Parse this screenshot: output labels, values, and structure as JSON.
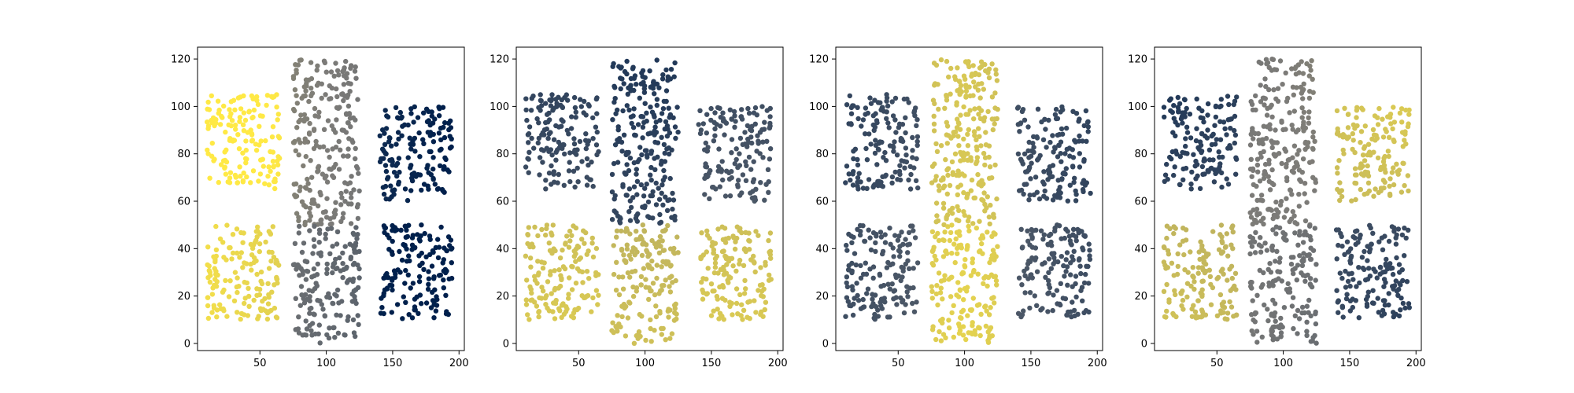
{
  "colors": {
    "low": "#00204c",
    "mid": "#7c7b78",
    "high": "#ffe945",
    "axis": "#000000",
    "background": "#ffffff"
  },
  "chart_data": [
    {
      "type": "scatter",
      "title": "",
      "xlabel": "",
      "ylabel": "",
      "xlim": [
        3,
        204
      ],
      "ylim": [
        -3,
        125
      ],
      "xticks": [
        50,
        100,
        150,
        200
      ],
      "yticks": [
        0,
        20,
        40,
        60,
        80,
        100,
        120
      ],
      "xtick_labels": [
        "50",
        "100",
        "150",
        "200"
      ],
      "ytick_labels": [
        "0",
        "20",
        "40",
        "60",
        "80",
        "100",
        "120"
      ],
      "colormap": "cividis",
      "point_count": 1000,
      "color_rule": "color value decreases from left to right",
      "regions": [
        {
          "x": [
            10,
            65
          ],
          "y": [
            65,
            105
          ],
          "color_value": 0.95
        },
        {
          "x": [
            10,
            65
          ],
          "y": [
            10,
            50
          ],
          "color_value": 0.85
        },
        {
          "x": [
            75,
            125
          ],
          "y": [
            50,
            120
          ],
          "color_value": 0.5
        },
        {
          "x": [
            75,
            125
          ],
          "y": [
            0,
            50
          ],
          "color_value": 0.4
        },
        {
          "x": [
            140,
            195
          ],
          "y": [
            60,
            100
          ],
          "color_value": 0.1
        },
        {
          "x": [
            140,
            195
          ],
          "y": [
            10,
            50
          ],
          "color_value": 0.05
        }
      ],
      "grid": false
    },
    {
      "type": "scatter",
      "title": "",
      "xlabel": "",
      "ylabel": "",
      "xlim": [
        3,
        204
      ],
      "ylim": [
        -3,
        125
      ],
      "xticks": [
        50,
        100,
        150,
        200
      ],
      "yticks": [
        0,
        20,
        40,
        60,
        80,
        100,
        120
      ],
      "xtick_labels": [
        "50",
        "100",
        "150",
        "200"
      ],
      "ytick_labels": [
        "0",
        "20",
        "40",
        "60",
        "80",
        "100",
        "120"
      ],
      "colormap": "cividis",
      "point_count": 1000,
      "color_rule": "color value increases from top to bottom",
      "regions": [
        {
          "x": [
            10,
            65
          ],
          "y": [
            65,
            105
          ],
          "color_value": 0.25
        },
        {
          "x": [
            10,
            65
          ],
          "y": [
            10,
            50
          ],
          "color_value": 0.8
        },
        {
          "x": [
            75,
            125
          ],
          "y": [
            50,
            120
          ],
          "color_value": 0.2
        },
        {
          "x": [
            75,
            125
          ],
          "y": [
            0,
            50
          ],
          "color_value": 0.75
        },
        {
          "x": [
            140,
            195
          ],
          "y": [
            60,
            100
          ],
          "color_value": 0.3
        },
        {
          "x": [
            140,
            195
          ],
          "y": [
            10,
            50
          ],
          "color_value": 0.8
        }
      ],
      "grid": false
    },
    {
      "type": "scatter",
      "title": "",
      "xlabel": "",
      "ylabel": "",
      "xlim": [
        3,
        204
      ],
      "ylim": [
        -3,
        125
      ],
      "xticks": [
        50,
        100,
        150,
        200
      ],
      "yticks": [
        0,
        20,
        40,
        60,
        80,
        100,
        120
      ],
      "xtick_labels": [
        "50",
        "100",
        "150",
        "200"
      ],
      "ytick_labels": [
        "0",
        "20",
        "40",
        "60",
        "80",
        "100",
        "120"
      ],
      "colormap": "cividis",
      "point_count": 1000,
      "color_rule": "color value is highest at the horizontal center",
      "regions": [
        {
          "x": [
            10,
            65
          ],
          "y": [
            65,
            105
          ],
          "color_value": 0.3
        },
        {
          "x": [
            10,
            65
          ],
          "y": [
            10,
            50
          ],
          "color_value": 0.35
        },
        {
          "x": [
            75,
            125
          ],
          "y": [
            50,
            120
          ],
          "color_value": 0.85
        },
        {
          "x": [
            75,
            125
          ],
          "y": [
            0,
            50
          ],
          "color_value": 0.9
        },
        {
          "x": [
            140,
            195
          ],
          "y": [
            60,
            100
          ],
          "color_value": 0.3
        },
        {
          "x": [
            140,
            195
          ],
          "y": [
            10,
            50
          ],
          "color_value": 0.35
        }
      ],
      "grid": false
    },
    {
      "type": "scatter",
      "title": "",
      "xlabel": "",
      "ylabel": "",
      "xlim": [
        3,
        204
      ],
      "ylim": [
        -3,
        125
      ],
      "xticks": [
        50,
        100,
        150,
        200
      ],
      "yticks": [
        0,
        20,
        40,
        60,
        80,
        100,
        120
      ],
      "xtick_labels": [
        "50",
        "100",
        "150",
        "200"
      ],
      "ytick_labels": [
        "0",
        "20",
        "40",
        "60",
        "80",
        "100",
        "120"
      ],
      "colormap": "cividis",
      "point_count": 1000,
      "color_rule": "color value is highest in the top-right and bottom-left corners",
      "regions": [
        {
          "x": [
            10,
            65
          ],
          "y": [
            65,
            105
          ],
          "color_value": 0.2
        },
        {
          "x": [
            10,
            65
          ],
          "y": [
            10,
            50
          ],
          "color_value": 0.75
        },
        {
          "x": [
            75,
            125
          ],
          "y": [
            50,
            120
          ],
          "color_value": 0.5
        },
        {
          "x": [
            75,
            125
          ],
          "y": [
            0,
            50
          ],
          "color_value": 0.45
        },
        {
          "x": [
            140,
            195
          ],
          "y": [
            60,
            100
          ],
          "color_value": 0.8
        },
        {
          "x": [
            140,
            195
          ],
          "y": [
            10,
            50
          ],
          "color_value": 0.25
        }
      ],
      "grid": false
    }
  ]
}
